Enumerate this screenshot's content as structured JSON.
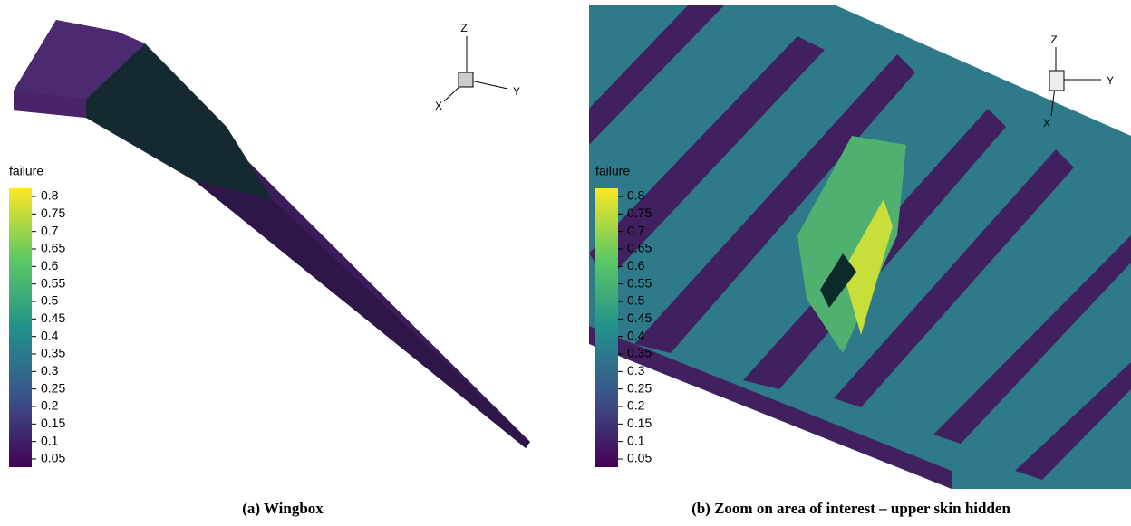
{
  "panels": [
    {
      "caption": "(a) Wingbox",
      "legend": {
        "title": "failure",
        "ticks": [
          0.8,
          0.75,
          0.7,
          0.65,
          0.6,
          0.55,
          0.5,
          0.45,
          0.4,
          0.35,
          0.3,
          0.25,
          0.2,
          0.15,
          0.1,
          0.05
        ]
      },
      "triad": {
        "z": "Z",
        "y": "Y",
        "x": "X"
      }
    },
    {
      "caption": "(b) Zoom on area of interest – upper skin hidden",
      "legend": {
        "title": "failure",
        "ticks": [
          0.8,
          0.75,
          0.7,
          0.65,
          0.6,
          0.55,
          0.5,
          0.45,
          0.4,
          0.35,
          0.3,
          0.25,
          0.2,
          0.15,
          0.1,
          0.05
        ]
      },
      "triad": {
        "z": "Z",
        "y": "Y",
        "x": "X"
      }
    }
  ]
}
